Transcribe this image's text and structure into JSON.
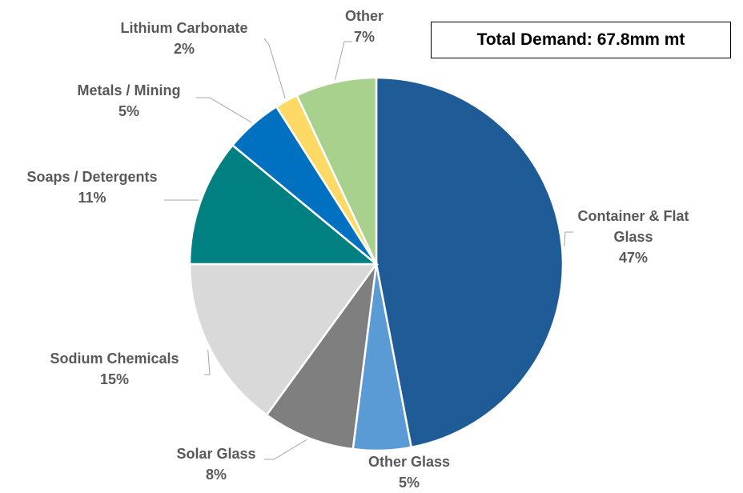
{
  "chart_data": {
    "type": "pie",
    "annotation": "Total Demand: 67.8mm mt",
    "categories": [
      "Container & Flat Glass",
      "Other Glass",
      "Solar Glass",
      "Sodium Chemicals",
      "Soaps / Detergents",
      "Metals / Mining",
      "Lithium Carbonate",
      "Other"
    ],
    "values": [
      47,
      5,
      8,
      15,
      11,
      5,
      2,
      7
    ],
    "value_labels": [
      "47%",
      "5%",
      "8%",
      "15%",
      "11%",
      "5%",
      "2%",
      "7%"
    ],
    "colors": [
      "#1f5b96",
      "#5b9bd5",
      "#7f7f7f",
      "#d9d9d9",
      "#008080",
      "#0070c0",
      "#ffd966",
      "#a9d18e"
    ]
  }
}
